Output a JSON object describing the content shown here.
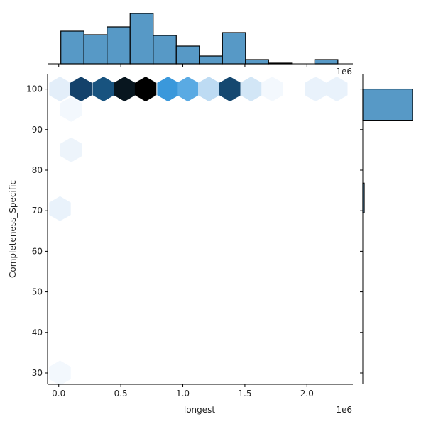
{
  "chart_data": {
    "type": "hexbin-jointplot",
    "xlabel": "longest",
    "ylabel": "Completeness_Specific",
    "x_offset_label": "1e6",
    "xlim": [
      -0.09,
      2.37
    ],
    "ylim": [
      27.2,
      103.6
    ],
    "x_ticks": [
      0.0,
      0.5,
      1.0,
      1.5,
      2.0
    ],
    "x_tick_labels": [
      "0.0",
      "0.5",
      "1.0",
      "1.5",
      "2.0"
    ],
    "y_ticks": [
      30,
      40,
      50,
      60,
      70,
      80,
      90,
      100
    ],
    "y_tick_labels": [
      "30",
      "40",
      "50",
      "60",
      "70",
      "80",
      "90",
      "100"
    ],
    "x_units_multiplier": 1000000,
    "grid": false,
    "hexbins": [
      {
        "x": 0.01,
        "y": 100,
        "color": "#e3eef9"
      },
      {
        "x": 0.18,
        "y": 100,
        "color": "#14426b"
      },
      {
        "x": 0.36,
        "y": 100,
        "color": "#18537f"
      },
      {
        "x": 0.53,
        "y": 100,
        "color": "#08161f"
      },
      {
        "x": 0.7,
        "y": 100,
        "color": "#000000"
      },
      {
        "x": 0.88,
        "y": 100,
        "color": "#3a98db"
      },
      {
        "x": 1.04,
        "y": 100,
        "color": "#5aaae3"
      },
      {
        "x": 1.21,
        "y": 100,
        "color": "#bddbf3"
      },
      {
        "x": 1.38,
        "y": 100,
        "color": "#154870"
      },
      {
        "x": 1.55,
        "y": 100,
        "color": "#d2e6f6"
      },
      {
        "x": 1.72,
        "y": 100,
        "color": "#f3f8fd"
      },
      {
        "x": 2.07,
        "y": 100,
        "color": "#e9f2fb"
      },
      {
        "x": 2.24,
        "y": 100,
        "color": "#e9f2fb"
      },
      {
        "x": 0.1,
        "y": 95,
        "color": "#f3f8fd"
      },
      {
        "x": 0.1,
        "y": 85,
        "color": "#edf4fb"
      },
      {
        "x": 0.01,
        "y": 70.5,
        "color": "#e9f2fb"
      },
      {
        "x": 0.01,
        "y": 30,
        "color": "#f3f8fd"
      }
    ],
    "x_marginal_histogram": {
      "bin_start": 0.017,
      "bin_width": 0.186,
      "relative_heights": [
        46,
        41,
        52,
        71,
        40,
        25,
        11,
        44,
        6,
        1,
        0,
        6
      ],
      "color": "#5799c6"
    },
    "y_marginal_histogram": {
      "bins": [
        {
          "from": 92.3,
          "to": 100,
          "relative_width": 70
        },
        {
          "from": 69.5,
          "to": 76.8,
          "relative_width": 2
        }
      ],
      "color": "#5799c6"
    }
  }
}
